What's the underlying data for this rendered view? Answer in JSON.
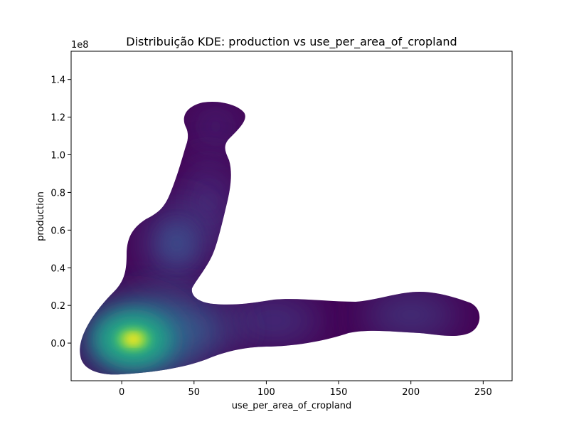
{
  "chart_data": {
    "type": "heatmap",
    "subtype": "kde-density",
    "title": "Distribuição KDE: production vs use_per_area_of_cropland",
    "xlabel": "use_per_area_of_cropland",
    "ylabel": "production",
    "y_offset_text": "1e8",
    "xlim": [
      -35,
      270
    ],
    "ylim": [
      -0.2,
      1.55
    ],
    "x_ticks": [
      0,
      50,
      100,
      150,
      200,
      250
    ],
    "x_tick_labels": [
      "0",
      "50",
      "100",
      "150",
      "200",
      "250"
    ],
    "y_ticks": [
      0.0,
      0.2,
      0.4,
      0.6,
      0.8,
      1.0,
      1.2,
      1.4
    ],
    "y_tick_labels": [
      "0.0",
      "0.2",
      "0.4",
      "0.6",
      "0.8",
      "1.0",
      "1.2",
      "1.4"
    ],
    "colormap": "viridis",
    "grid": false,
    "density_peaks": [
      {
        "x": 8,
        "y": 0.02,
        "weight": 1.0
      },
      {
        "x": 38,
        "y": 0.53,
        "weight": 0.3
      },
      {
        "x": 60,
        "y": 0.75,
        "weight": 0.18
      },
      {
        "x": 65,
        "y": 1.15,
        "weight": 0.14
      },
      {
        "x": 105,
        "y": 0.12,
        "weight": 0.25
      },
      {
        "x": 200,
        "y": 0.15,
        "weight": 0.2
      },
      {
        "x": 40,
        "y": 0.07,
        "weight": 0.3
      }
    ]
  }
}
